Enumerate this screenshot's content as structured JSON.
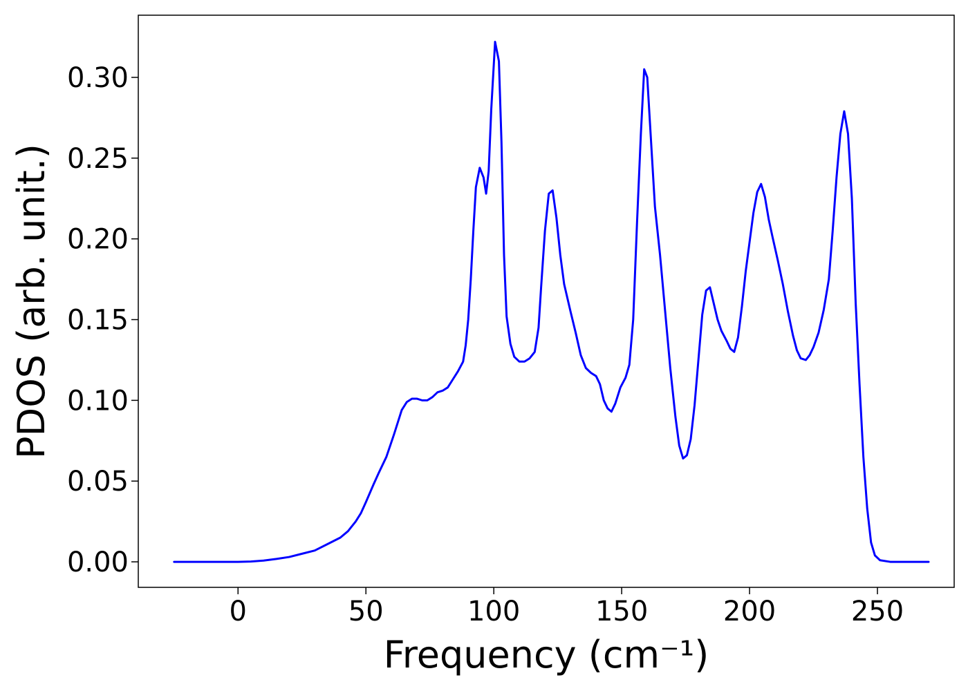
{
  "chart_data": {
    "type": "line",
    "title": "",
    "xlabel": "Frequency (cm⁻¹)",
    "ylabel": "PDOS (arb. unit.)",
    "xlim": [
      -39,
      280
    ],
    "ylim": [
      -0.0158,
      0.3385
    ],
    "grid": false,
    "x_ticks": [
      0,
      50,
      100,
      150,
      200,
      250
    ],
    "x_tick_labels": [
      "0",
      "50",
      "100",
      "150",
      "200",
      "250"
    ],
    "y_ticks": [
      0.0,
      0.05,
      0.1,
      0.15,
      0.2,
      0.25,
      0.3
    ],
    "y_tick_labels": [
      "0.00",
      "0.05",
      "0.10",
      "0.15",
      "0.20",
      "0.25",
      "0.30"
    ],
    "series": [
      {
        "color": "#0000ff",
        "points": [
          [
            -25,
            0.0
          ],
          [
            -10,
            0.0
          ],
          [
            0,
            0.0
          ],
          [
            5,
            0.0002
          ],
          [
            10,
            0.0008
          ],
          [
            15,
            0.0018
          ],
          [
            20,
            0.003
          ],
          [
            25,
            0.005
          ],
          [
            30,
            0.007
          ],
          [
            35,
            0.011
          ],
          [
            40,
            0.015
          ],
          [
            43,
            0.019
          ],
          [
            46,
            0.025
          ],
          [
            48,
            0.03
          ],
          [
            50,
            0.037
          ],
          [
            53,
            0.048
          ],
          [
            55,
            0.055
          ],
          [
            58,
            0.065
          ],
          [
            61,
            0.079
          ],
          [
            64,
            0.094
          ],
          [
            66,
            0.099
          ],
          [
            68,
            0.101
          ],
          [
            70,
            0.101
          ],
          [
            72,
            0.1
          ],
          [
            74,
            0.1
          ],
          [
            76,
            0.102
          ],
          [
            78,
            0.105
          ],
          [
            80,
            0.106
          ],
          [
            82,
            0.108
          ],
          [
            84,
            0.113
          ],
          [
            86,
            0.118
          ],
          [
            88,
            0.124
          ],
          [
            89,
            0.134
          ],
          [
            90,
            0.15
          ],
          [
            91,
            0.175
          ],
          [
            92,
            0.205
          ],
          [
            93,
            0.232
          ],
          [
            94.5,
            0.244
          ],
          [
            96,
            0.238
          ],
          [
            97,
            0.228
          ],
          [
            98,
            0.242
          ],
          [
            99,
            0.28
          ],
          [
            100.5,
            0.322
          ],
          [
            102,
            0.31
          ],
          [
            103,
            0.26
          ],
          [
            104,
            0.19
          ],
          [
            105,
            0.152
          ],
          [
            106.5,
            0.135
          ],
          [
            108,
            0.127
          ],
          [
            110,
            0.124
          ],
          [
            112,
            0.124
          ],
          [
            114,
            0.126
          ],
          [
            116,
            0.13
          ],
          [
            117.5,
            0.145
          ],
          [
            118.5,
            0.17
          ],
          [
            120,
            0.205
          ],
          [
            121.5,
            0.228
          ],
          [
            123,
            0.23
          ],
          [
            124.5,
            0.213
          ],
          [
            126,
            0.19
          ],
          [
            127.5,
            0.172
          ],
          [
            130,
            0.155
          ],
          [
            132,
            0.142
          ],
          [
            134,
            0.128
          ],
          [
            136,
            0.12
          ],
          [
            138,
            0.117
          ],
          [
            140,
            0.115
          ],
          [
            141.5,
            0.11
          ],
          [
            143,
            0.1
          ],
          [
            144.5,
            0.095
          ],
          [
            146,
            0.093
          ],
          [
            147.5,
            0.098
          ],
          [
            149.5,
            0.108
          ],
          [
            151.5,
            0.114
          ],
          [
            153,
            0.122
          ],
          [
            154.5,
            0.15
          ],
          [
            156,
            0.21
          ],
          [
            157.5,
            0.265
          ],
          [
            158.8,
            0.305
          ],
          [
            160,
            0.3
          ],
          [
            161.5,
            0.26
          ],
          [
            163,
            0.22
          ],
          [
            165,
            0.19
          ],
          [
            167,
            0.155
          ],
          [
            169,
            0.12
          ],
          [
            171,
            0.09
          ],
          [
            172.5,
            0.072
          ],
          [
            174,
            0.064
          ],
          [
            175.5,
            0.066
          ],
          [
            177,
            0.076
          ],
          [
            178.5,
            0.097
          ],
          [
            180,
            0.125
          ],
          [
            181.5,
            0.153
          ],
          [
            183,
            0.168
          ],
          [
            184.5,
            0.17
          ],
          [
            186,
            0.16
          ],
          [
            187.5,
            0.15
          ],
          [
            189,
            0.143
          ],
          [
            191,
            0.137
          ],
          [
            192.5,
            0.132
          ],
          [
            194,
            0.13
          ],
          [
            195.5,
            0.139
          ],
          [
            197,
            0.158
          ],
          [
            198.5,
            0.18
          ],
          [
            200,
            0.198
          ],
          [
            201.5,
            0.216
          ],
          [
            203,
            0.229
          ],
          [
            204.5,
            0.234
          ],
          [
            206,
            0.226
          ],
          [
            207.5,
            0.212
          ],
          [
            209,
            0.201
          ],
          [
            211,
            0.187
          ],
          [
            213,
            0.172
          ],
          [
            215,
            0.155
          ],
          [
            217,
            0.14
          ],
          [
            218.5,
            0.131
          ],
          [
            220,
            0.126
          ],
          [
            222,
            0.125
          ],
          [
            223.5,
            0.128
          ],
          [
            225,
            0.133
          ],
          [
            227,
            0.142
          ],
          [
            229,
            0.156
          ],
          [
            231,
            0.175
          ],
          [
            232.5,
            0.205
          ],
          [
            234,
            0.238
          ],
          [
            235.5,
            0.265
          ],
          [
            237,
            0.279
          ],
          [
            238.5,
            0.265
          ],
          [
            240,
            0.225
          ],
          [
            241.5,
            0.16
          ],
          [
            243,
            0.11
          ],
          [
            244.5,
            0.065
          ],
          [
            246,
            0.033
          ],
          [
            247.5,
            0.012
          ],
          [
            249,
            0.004
          ],
          [
            251,
            0.001
          ],
          [
            255,
            0.0
          ],
          [
            265,
            0.0
          ],
          [
            270,
            0.0
          ]
        ]
      }
    ]
  }
}
